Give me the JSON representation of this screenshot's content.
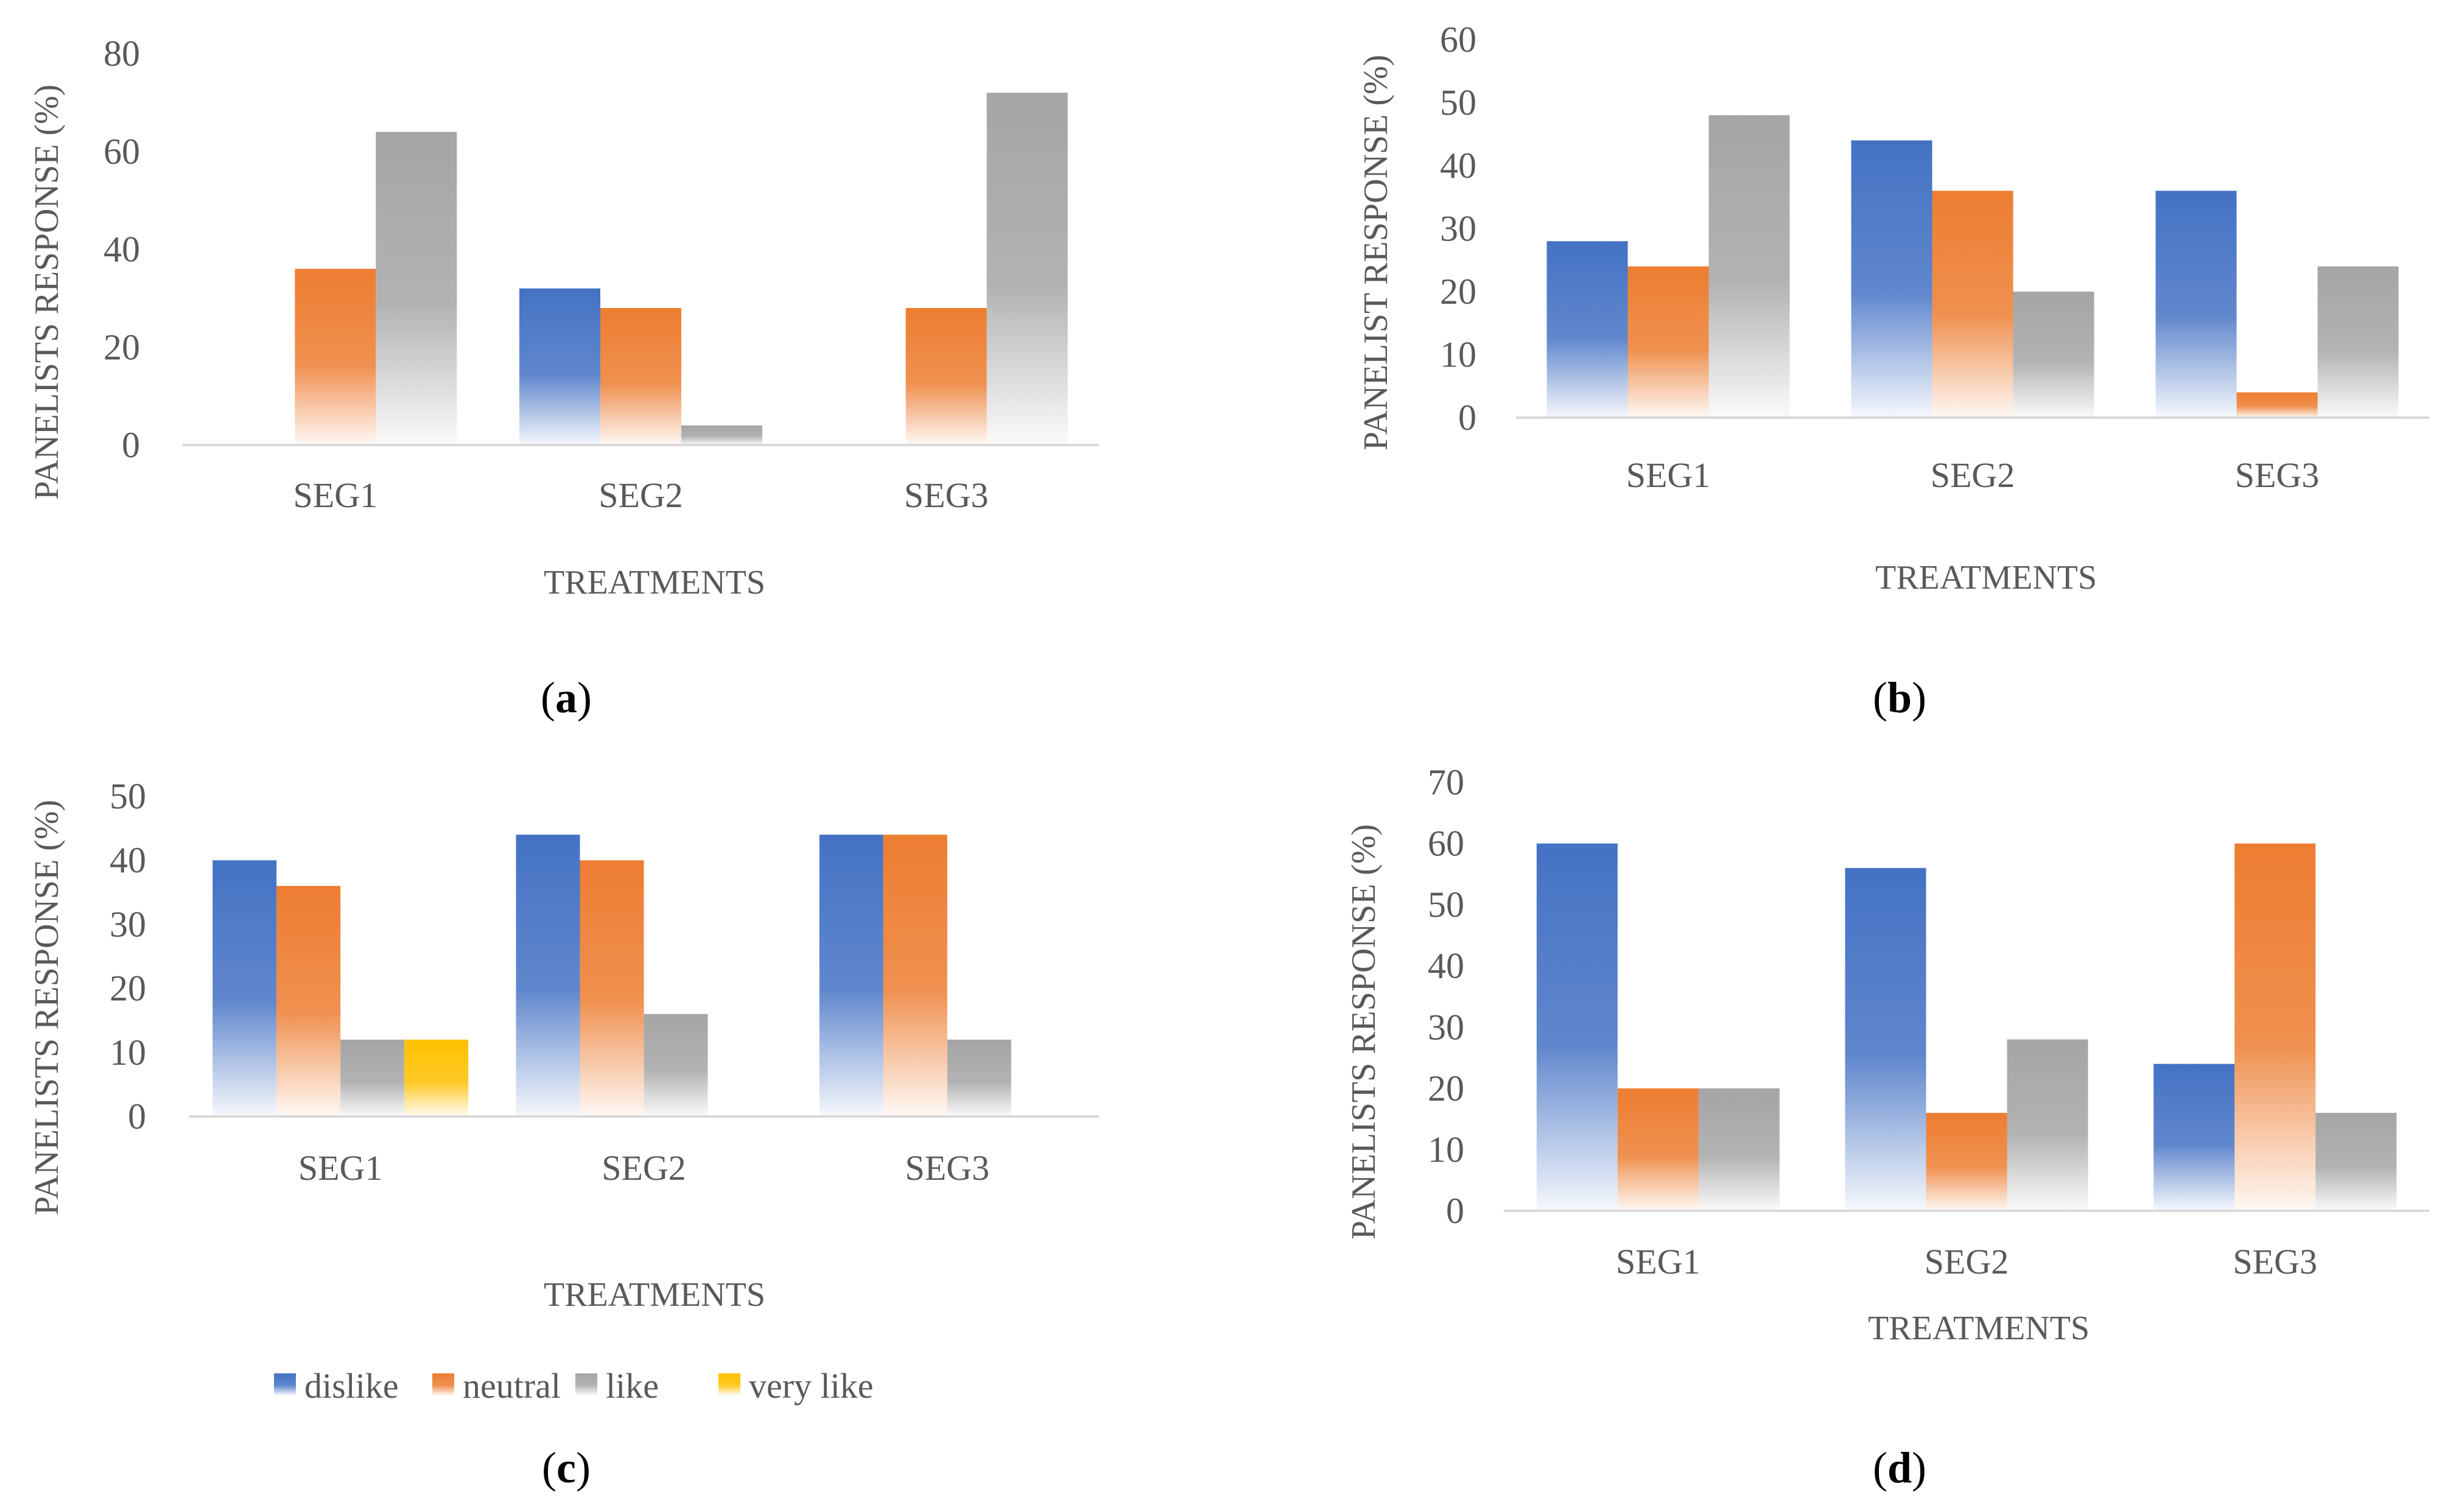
{
  "colors": {
    "dislike": "#4472C4",
    "neutral": "#ED7D31",
    "like": "#A5A5A5",
    "very_like": "#FFC000",
    "axis": "#D9D9D9",
    "text": "#595959"
  },
  "legend": [
    {
      "key": "dislike",
      "label": "dislike"
    },
    {
      "key": "neutral",
      "label": "neutral"
    },
    {
      "key": "like",
      "label": "like"
    },
    {
      "key": "very_like",
      "label": "very like"
    }
  ],
  "chart_data": [
    {
      "panel": "a",
      "type": "bar",
      "xlabel": "TREATMENTS",
      "ylabel": "PANELISTS RESPONSE (%)",
      "categories": [
        "SEG1",
        "SEG2",
        "SEG3"
      ],
      "ylim": [
        0,
        80
      ],
      "yticks": [
        0,
        20,
        40,
        60,
        80
      ],
      "series": [
        {
          "name": "dislike",
          "key": "dislike",
          "values": [
            0,
            32,
            0
          ]
        },
        {
          "name": "neutral",
          "key": "neutral",
          "values": [
            36,
            28,
            28
          ]
        },
        {
          "name": "like",
          "key": "like",
          "values": [
            64,
            4,
            72
          ]
        }
      ]
    },
    {
      "panel": "b",
      "type": "bar",
      "xlabel": "TREATMENTS",
      "ylabel": "PANELIST RESPONSE (%)",
      "categories": [
        "SEG1",
        "SEG2",
        "SEG3"
      ],
      "ylim": [
        0,
        60
      ],
      "yticks": [
        0,
        10,
        20,
        30,
        40,
        50,
        60
      ],
      "series": [
        {
          "name": "dislike",
          "key": "dislike",
          "values": [
            28,
            44,
            36
          ]
        },
        {
          "name": "neutral",
          "key": "neutral",
          "values": [
            24,
            36,
            4
          ]
        },
        {
          "name": "like",
          "key": "like",
          "values": [
            48,
            20,
            24
          ]
        }
      ]
    },
    {
      "panel": "c",
      "type": "bar",
      "xlabel": "TREATMENTS",
      "ylabel": "PANELISTS RESPONSE (%)",
      "categories": [
        "SEG1",
        "SEG2",
        "SEG3"
      ],
      "ylim": [
        0,
        50
      ],
      "yticks": [
        0,
        10,
        20,
        30,
        40,
        50
      ],
      "legend_position": "bottom",
      "series": [
        {
          "name": "dislike",
          "key": "dislike",
          "values": [
            40,
            44,
            44
          ]
        },
        {
          "name": "neutral",
          "key": "neutral",
          "values": [
            36,
            40,
            44
          ]
        },
        {
          "name": "like",
          "key": "like",
          "values": [
            12,
            16,
            12
          ]
        },
        {
          "name": "very like",
          "key": "very_like",
          "values": [
            12,
            0,
            0
          ]
        }
      ]
    },
    {
      "panel": "d",
      "type": "bar",
      "xlabel": "TREATMENTS",
      "ylabel": "PANELISTS RESPONSE (%)",
      "categories": [
        "SEG1",
        "SEG2",
        "SEG3"
      ],
      "ylim": [
        0,
        70
      ],
      "yticks": [
        0,
        10,
        20,
        30,
        40,
        50,
        60,
        70
      ],
      "series": [
        {
          "name": "dislike",
          "key": "dislike",
          "values": [
            60,
            56,
            24
          ]
        },
        {
          "name": "neutral",
          "key": "neutral",
          "values": [
            20,
            16,
            60
          ]
        },
        {
          "name": "like",
          "key": "like",
          "values": [
            20,
            28,
            16
          ]
        }
      ]
    }
  ]
}
